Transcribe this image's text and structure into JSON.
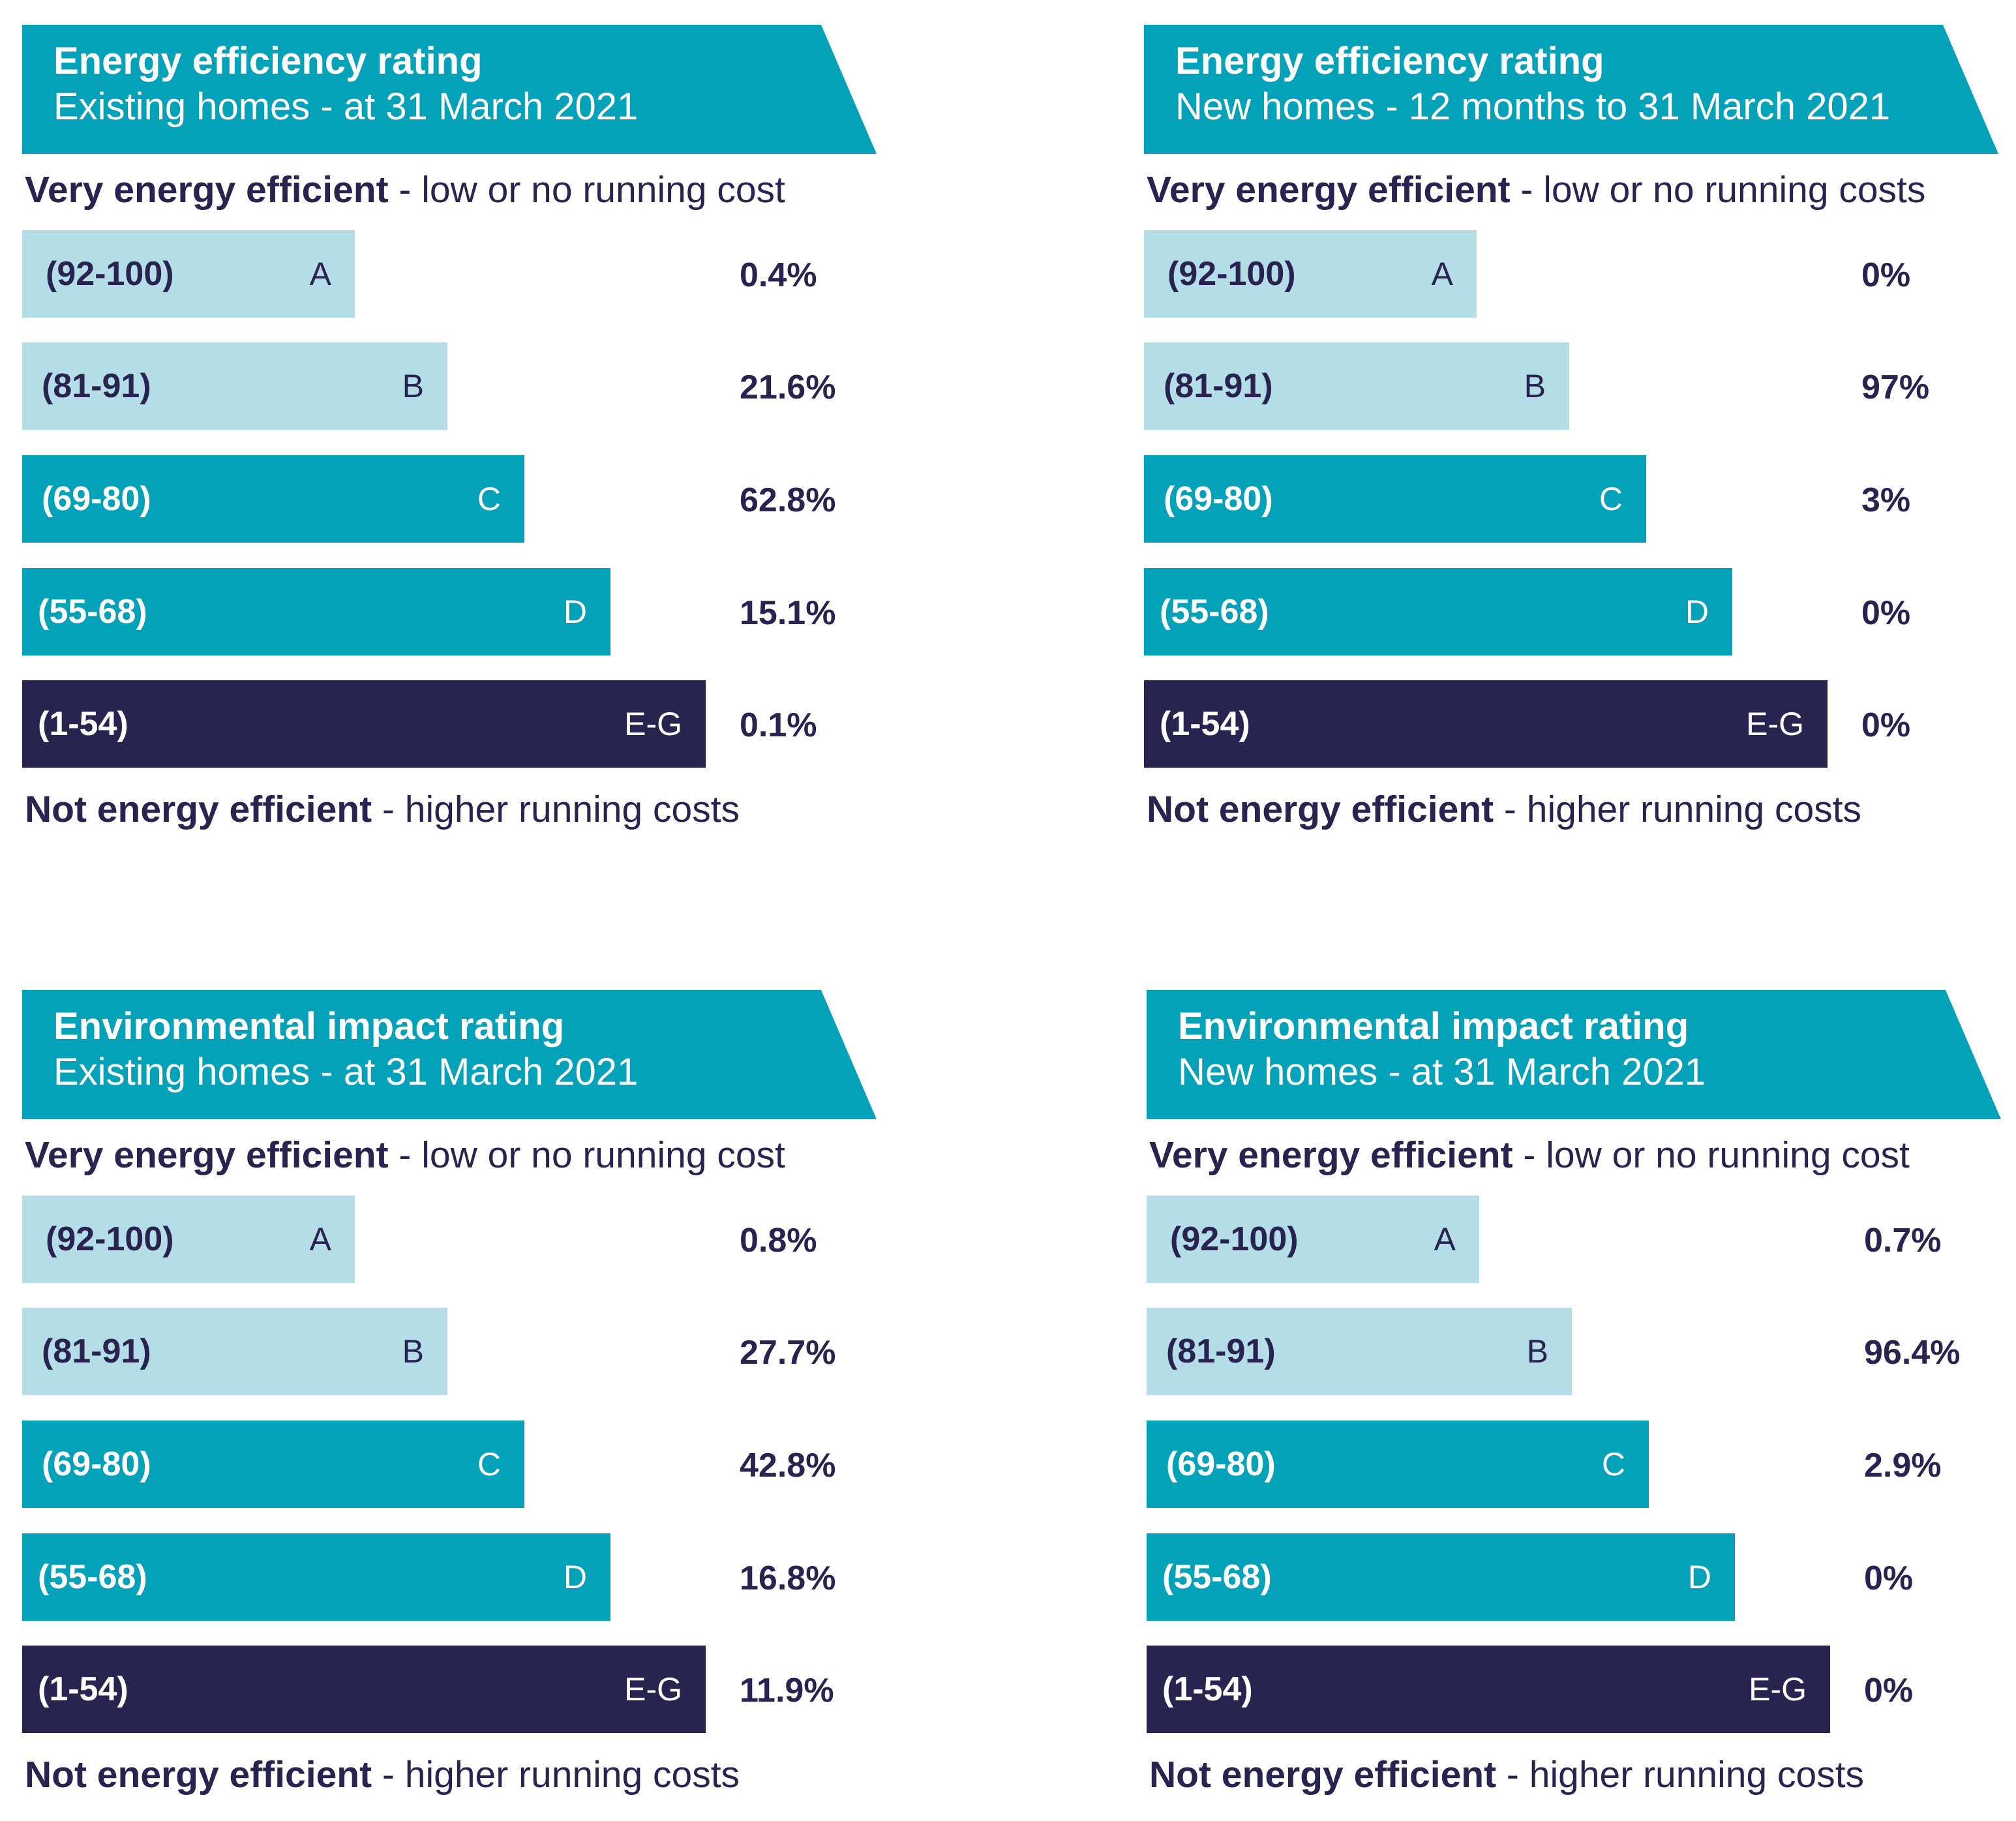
{
  "colors": {
    "banner": "#04a2b8",
    "light_bar": "#b4dde8",
    "mid_bar": "#04a2b8",
    "dark_bar": "#29234f",
    "text_dark": "#29234f",
    "text_light": "#ffffff"
  },
  "top_caption": {
    "bold": "Very energy efficient",
    "rest": " - low or no running cost"
  },
  "top_caption_plural": {
    "bold": "Very energy efficient",
    "rest": " - low or no running costs"
  },
  "bottom_caption": {
    "bold": "Not energy efficient",
    "rest": " - higher running costs"
  },
  "chart_data": [
    {
      "type": "bar",
      "title": "Energy efficiency rating",
      "subtitle": "Existing homes - at 31 March 2021",
      "categories": [
        "(92-100)",
        "(81-91)",
        "(69-80)",
        "(55-68)",
        "(1-54)"
      ],
      "grades": [
        "A",
        "B",
        "C",
        "D",
        "E-G"
      ],
      "values": [
        0.4,
        21.6,
        62.8,
        15.1,
        0.1
      ],
      "value_labels": [
        "0.4%",
        "21.6%",
        "62.8%",
        "15.1%",
        "0.1%"
      ]
    },
    {
      "type": "bar",
      "title": "Energy efficiency rating",
      "subtitle": "New homes - 12 months to 31 March 2021",
      "categories": [
        "(92-100)",
        "(81-91)",
        "(69-80)",
        "(55-68)",
        "(1-54)"
      ],
      "grades": [
        "A",
        "B",
        "C",
        "D",
        "E-G"
      ],
      "values": [
        0,
        97,
        3,
        0,
        0
      ],
      "value_labels": [
        "0%",
        "97%",
        "3%",
        "0%",
        "0%"
      ]
    },
    {
      "type": "bar",
      "title": "Environmental impact rating",
      "subtitle": "Existing homes - at 31 March 2021",
      "categories": [
        "(92-100)",
        "(81-91)",
        "(69-80)",
        "(55-68)",
        "(1-54)"
      ],
      "grades": [
        "A",
        "B",
        "C",
        "D",
        "E-G"
      ],
      "values": [
        0.8,
        27.7,
        42.8,
        16.8,
        11.9
      ],
      "value_labels": [
        "0.8%",
        "27.7%",
        "42.8%",
        "16.8%",
        "11.9%"
      ]
    },
    {
      "type": "bar",
      "title": "Environmental impact rating",
      "subtitle": "New homes - at 31 March 2021",
      "categories": [
        "(92-100)",
        "(81-91)",
        "(69-80)",
        "(55-68)",
        "(1-54)"
      ],
      "grades": [
        "A",
        "B",
        "C",
        "D",
        "E-G"
      ],
      "values": [
        0.7,
        96.4,
        2.9,
        0,
        0
      ],
      "value_labels": [
        "0.7%",
        "96.4%",
        "2.9%",
        "0%",
        "0%"
      ]
    }
  ]
}
